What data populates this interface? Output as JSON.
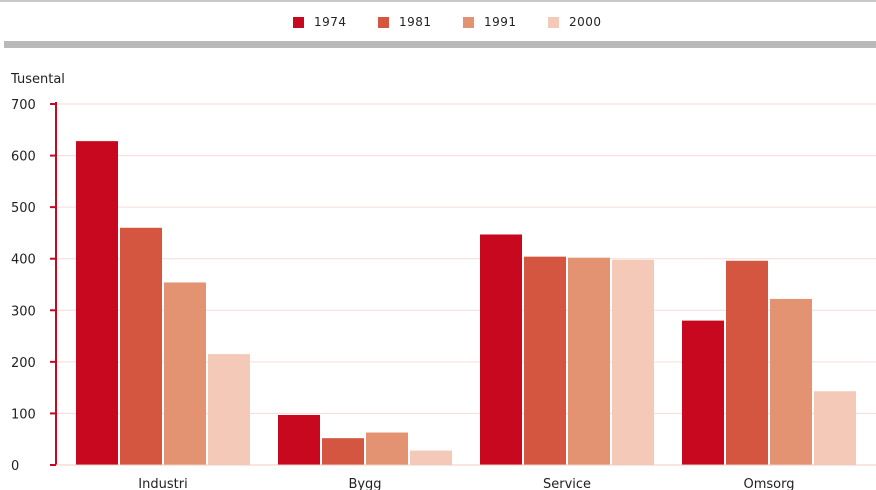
{
  "chart_data": {
    "type": "bar",
    "ylabel": "Tusental",
    "categories": [
      "Industri",
      "Bygg",
      "Service",
      "Omsorg"
    ],
    "series": [
      {
        "name": "1974",
        "color": "#c8081e",
        "values": [
          628,
          97,
          447,
          280
        ]
      },
      {
        "name": "1981",
        "color": "#d55640",
        "values": [
          460,
          52,
          404,
          396
        ]
      },
      {
        "name": "1991",
        "color": "#e49372",
        "values": [
          354,
          63,
          402,
          322
        ]
      },
      {
        "name": "2000",
        "color": "#f4c9b8",
        "values": [
          215,
          28,
          398,
          143
        ]
      }
    ],
    "ylim": [
      0,
      700
    ],
    "yticks": [
      0,
      100,
      200,
      300,
      400,
      500,
      600,
      700
    ],
    "grid": true,
    "legend_position": "top-center"
  }
}
